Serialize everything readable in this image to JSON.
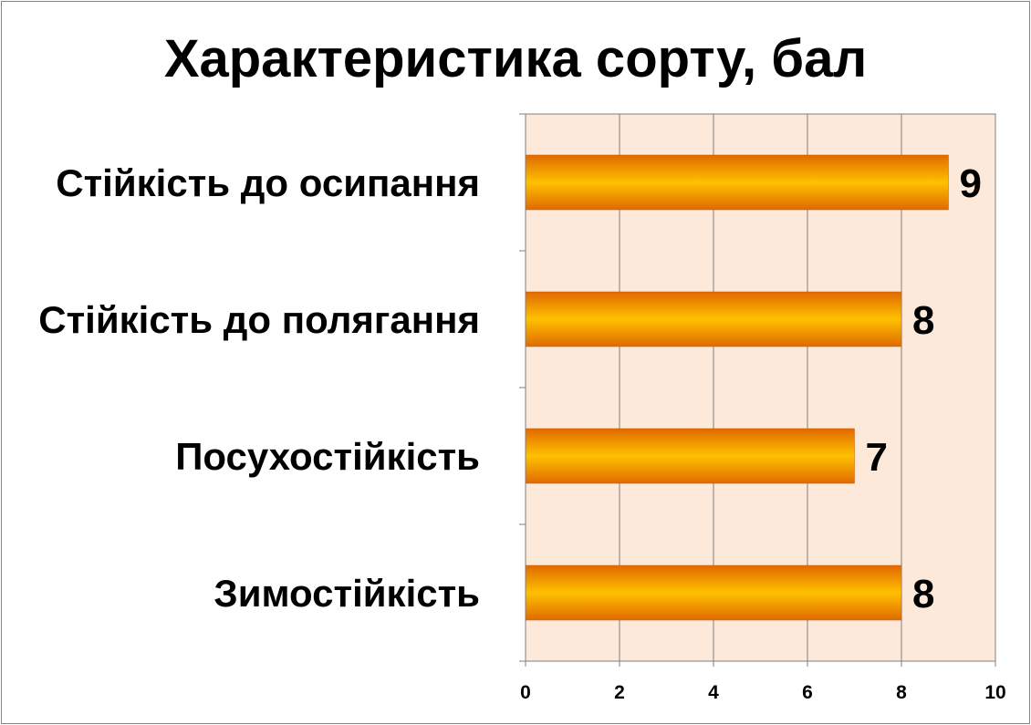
{
  "chart_data": {
    "type": "bar",
    "orientation": "horizontal",
    "title": "Характеристика сорту, бал",
    "categories": [
      "Стійкість до осипання",
      "Стійкість до полягання",
      "Посухостійкість",
      "Зимостійкість"
    ],
    "values": [
      9,
      8,
      7,
      8
    ],
    "xlim": [
      0,
      10
    ],
    "x_ticks": [
      "0",
      "2",
      "4",
      "6",
      "8",
      "10"
    ],
    "data_labels": [
      "9",
      "8",
      "7",
      "8"
    ],
    "grid": true,
    "legend": "none",
    "colors": {
      "bar_dark": "#E06A00",
      "bar_light": "#FFC000",
      "plot_background": "#FDE9D9",
      "gridline": "#7F7F7F"
    }
  }
}
